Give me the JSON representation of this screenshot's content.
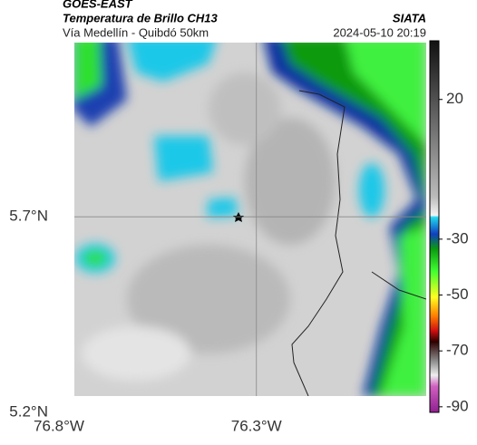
{
  "header": {
    "satellite": "GOES-EAST",
    "product": "Temperatura de Brillo CH13",
    "region": "Vía Medellín - Quibdó 50km",
    "source": "SIATA",
    "datetime": "2024-05-10 20:19"
  },
  "map": {
    "xlim": [
      -76.8,
      -75.87
    ],
    "ylim": [
      5.2,
      6.15
    ],
    "xticks": [
      {
        "value": -76.8,
        "label": "76.8°W"
      },
      {
        "value": -76.3,
        "label": "76.3°W"
      }
    ],
    "yticks": [
      {
        "value": 5.7,
        "label": "5.7°N"
      },
      {
        "value": 5.2,
        "label": "5.2°N"
      }
    ]
  },
  "colorbar": {
    "lim": [
      -92,
      41
    ],
    "ticks": [
      20,
      -30,
      -50,
      -70,
      -90
    ]
  }
}
